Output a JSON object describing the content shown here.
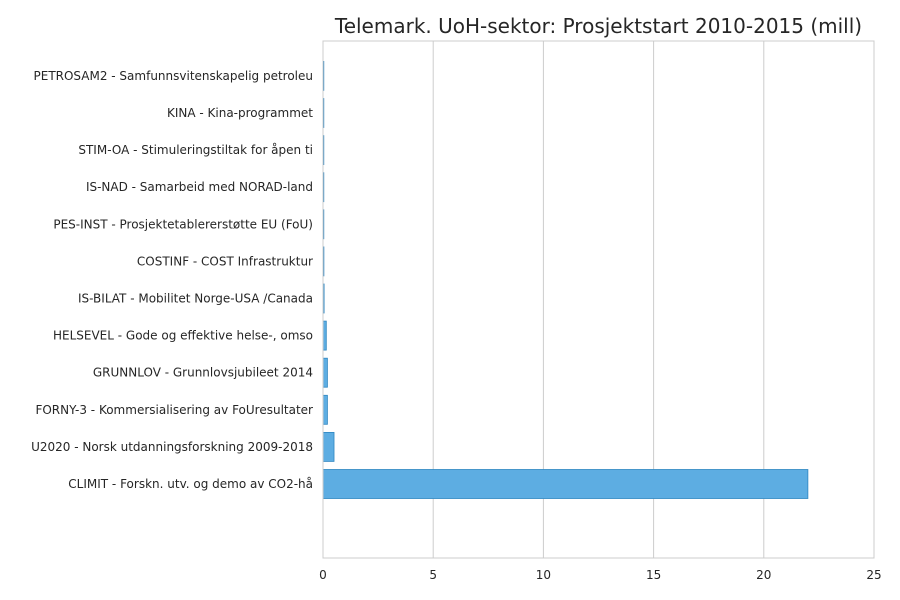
{
  "chart_data": {
    "type": "bar",
    "orientation": "horizontal",
    "title": "Telemark. UoH-sektor: Prosjektstart 2010-2015 (mill)",
    "xlabel": "",
    "ylabel": "",
    "xlim": [
      0,
      25
    ],
    "xticks": [
      0,
      5,
      10,
      15,
      20,
      25
    ],
    "grid": "vertical",
    "legend": "none",
    "bar_color": "#5DADE2",
    "bar_edge_color": "#2E86C1",
    "categories": [
      "CLIMIT - Forskn. utv. og demo av CO2-hå",
      "U2020 - Norsk utdanningsforskning 2009-2018",
      "FORNY-3 - Kommersialisering av FoUresultater",
      "GRUNNLOV - Grunnlovsjubileet 2014",
      "HELSEVEL - Gode og effektive helse-, omso",
      "IS-BILAT - Mobilitet Norge-USA /Canada",
      "COSTINF - COST Infrastruktur",
      "PES-INST - Prosjektetablererstøtte EU (FoU)",
      "IS-NAD - Samarbeid med NORAD-land",
      "STIM-OA - Stimuleringstiltak for åpen ti",
      "KINA - Kina-programmet",
      "PETROSAM2 - Samfunnsvitenskapelig petroleu"
    ],
    "values": [
      22.0,
      0.5,
      0.2,
      0.2,
      0.15,
      0.05,
      0.04,
      0.03,
      0.03,
      0.02,
      0.01,
      0.005
    ]
  }
}
